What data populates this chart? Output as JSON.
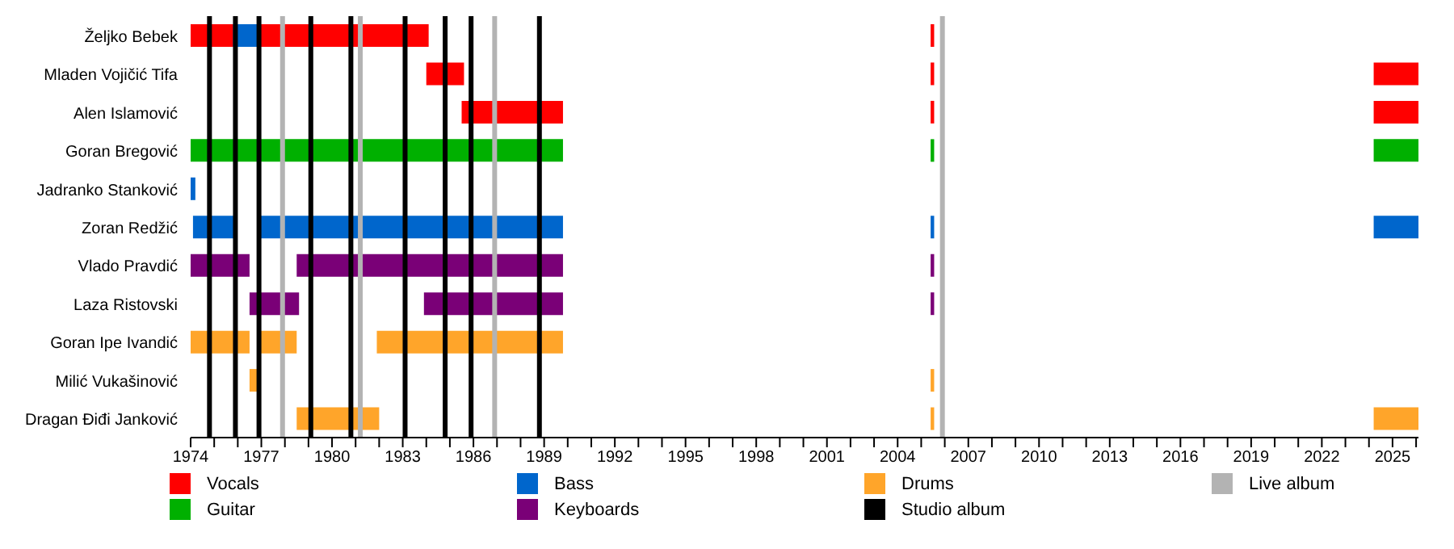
{
  "chart_data": {
    "type": "bar",
    "orientation": "horizontal",
    "legend": "bottom",
    "grid": false,
    "categories": [
      "Željko Bebek",
      "Mladen Vojičić Tifa",
      "Alen Islamović",
      "Goran Bregović",
      "Jadranko Stanković",
      "Zoran Redžić",
      "Vlado Pravdić",
      "Laza Ristovski",
      "Goran Ipe Ivandić",
      "Milić Vukašinović",
      "Dragan Điđi Janković"
    ],
    "xlim": [
      1974,
      2026.1
    ],
    "xticks": [
      1974,
      {
        "value": 1975,
        "label": null
      },
      {
        "value": 1976,
        "label": null
      },
      1977,
      {
        "value": 1978,
        "label": null
      },
      {
        "value": 1979,
        "label": null
      },
      1980,
      {
        "value": 1981,
        "label": null
      },
      {
        "value": 1982,
        "label": null
      },
      1983,
      {
        "value": 1984,
        "label": null
      },
      {
        "value": 1985,
        "label": null
      },
      1986,
      {
        "value": 1987,
        "label": null
      },
      {
        "value": 1988,
        "label": null
      },
      1989,
      {
        "value": 1990,
        "label": null
      },
      {
        "value": 1991,
        "label": null
      },
      1992,
      {
        "value": 1993,
        "label": null
      },
      {
        "value": 1994,
        "label": null
      },
      1995,
      {
        "value": 1996,
        "label": null
      },
      {
        "value": 1997,
        "label": null
      },
      1998,
      {
        "value": 1999,
        "label": null
      },
      {
        "value": 2000,
        "label": null
      },
      2001,
      {
        "value": 2002,
        "label": null
      },
      {
        "value": 2003,
        "label": null
      },
      2004,
      {
        "value": 2005,
        "label": null
      },
      {
        "value": 2006,
        "label": null
      },
      2007,
      {
        "value": 2008,
        "label": null
      },
      {
        "value": 2009,
        "label": null
      },
      2010,
      {
        "value": 2011,
        "label": null
      },
      {
        "value": 2012,
        "label": null
      },
      2013,
      {
        "value": 2014,
        "label": null
      },
      {
        "value": 2015,
        "label": null
      },
      2016,
      {
        "value": 2017,
        "label": null
      },
      {
        "value": 2018,
        "label": null
      },
      2019,
      {
        "value": 2020,
        "label": null
      },
      {
        "value": 2021,
        "label": null
      },
      2022,
      {
        "value": 2023,
        "label": null
      },
      {
        "value": 2024,
        "label": null
      },
      2025,
      {
        "value": 2026,
        "label": null
      }
    ],
    "series": [
      {
        "name": "Vocals",
        "color": "#ff0000",
        "base": [
          1974,
          1984.0,
          1985.5,
          null,
          null,
          null,
          null,
          null,
          null,
          null,
          null
        ],
        "values": [
          10.1,
          1.6,
          4.3,
          null,
          null,
          null,
          null,
          null,
          null,
          null,
          null
        ]
      },
      {
        "color": "#ff0000",
        "base": [
          2005.4,
          2005.4,
          2005.4,
          null,
          null,
          null,
          null,
          null,
          null,
          null,
          null
        ],
        "values": [
          0.15,
          0.15,
          0.15,
          null,
          null,
          null,
          null,
          null,
          null,
          null,
          null
        ]
      },
      {
        "color": "#ff0000",
        "base": [
          null,
          2024.2,
          2024.2,
          null,
          null,
          null,
          null,
          null,
          null,
          null,
          null
        ],
        "values": [
          null,
          1.9,
          1.9,
          null,
          null,
          null,
          null,
          null,
          null,
          null,
          null
        ]
      },
      {
        "name": "Guitar",
        "color": "#00b000",
        "base": [
          null,
          null,
          null,
          1974,
          null,
          null,
          null,
          null,
          null,
          null,
          null
        ],
        "values": [
          null,
          null,
          null,
          15.8,
          null,
          null,
          null,
          null,
          null,
          null,
          null
        ]
      },
      {
        "color": "#00b000",
        "base": [
          null,
          null,
          null,
          2005.4,
          null,
          null,
          null,
          null,
          null,
          null,
          null
        ],
        "values": [
          null,
          null,
          null,
          0.15,
          null,
          null,
          null,
          null,
          null,
          null,
          null
        ]
      },
      {
        "color": "#00b000",
        "base": [
          null,
          null,
          null,
          2024.2,
          null,
          null,
          null,
          null,
          null,
          null,
          null
        ],
        "values": [
          null,
          null,
          null,
          1.9,
          null,
          null,
          null,
          null,
          null,
          null,
          null
        ]
      },
      {
        "name": "Bass",
        "color": "#0066cc",
        "base": [
          1975.8,
          null,
          null,
          null,
          1974,
          1974.1,
          null,
          null,
          null,
          null,
          null
        ],
        "values": [
          1.1,
          null,
          null,
          null,
          0.2,
          1.8,
          null,
          null,
          null,
          null,
          null
        ]
      },
      {
        "color": "#0066cc",
        "base": [
          null,
          null,
          null,
          null,
          null,
          1976.9,
          null,
          null,
          null,
          null,
          null
        ],
        "values": [
          null,
          null,
          null,
          null,
          null,
          12.9,
          null,
          null,
          null,
          null,
          null
        ]
      },
      {
        "color": "#0066cc",
        "base": [
          null,
          null,
          null,
          null,
          null,
          2005.4,
          null,
          null,
          null,
          null,
          null
        ],
        "values": [
          null,
          null,
          null,
          null,
          null,
          0.15,
          null,
          null,
          null,
          null,
          null
        ]
      },
      {
        "color": "#0066cc",
        "base": [
          null,
          null,
          null,
          null,
          null,
          2024.2,
          null,
          null,
          null,
          null,
          null
        ],
        "values": [
          null,
          null,
          null,
          null,
          null,
          1.9,
          null,
          null,
          null,
          null,
          null
        ]
      },
      {
        "name": "Keyboards",
        "color": "#7a0077",
        "base": [
          null,
          null,
          null,
          null,
          null,
          null,
          1974,
          1976.5,
          null,
          null,
          null
        ],
        "values": [
          null,
          null,
          null,
          null,
          null,
          null,
          2.5,
          2.1,
          null,
          null,
          null
        ]
      },
      {
        "color": "#7a0077",
        "base": [
          null,
          null,
          null,
          null,
          null,
          null,
          1978.5,
          1983.9,
          null,
          null,
          null
        ],
        "values": [
          null,
          null,
          null,
          null,
          null,
          null,
          11.3,
          5.9,
          null,
          null,
          null
        ]
      },
      {
        "color": "#7a0077",
        "base": [
          null,
          null,
          null,
          null,
          null,
          null,
          2005.4,
          2005.4,
          null,
          null,
          null
        ],
        "values": [
          null,
          null,
          null,
          null,
          null,
          null,
          0.15,
          0.15,
          null,
          null,
          null
        ]
      },
      {
        "name": "Drums",
        "color": "#ffa52a",
        "base": [
          null,
          null,
          null,
          null,
          null,
          null,
          null,
          null,
          1974,
          1976.5,
          1978.5
        ],
        "values": [
          null,
          null,
          null,
          null,
          null,
          null,
          null,
          null,
          2.5,
          0.4,
          3.5
        ]
      },
      {
        "color": "#ffa52a",
        "base": [
          null,
          null,
          null,
          null,
          null,
          null,
          null,
          null,
          1976.9,
          2005.4,
          2005.4
        ],
        "values": [
          null,
          null,
          null,
          null,
          null,
          null,
          null,
          null,
          1.6,
          0.15,
          0.15
        ]
      },
      {
        "color": "#ffa52a",
        "base": [
          null,
          null,
          null,
          null,
          null,
          null,
          null,
          null,
          1981.9,
          null,
          2024.2
        ],
        "values": [
          null,
          null,
          null,
          null,
          null,
          null,
          null,
          null,
          7.9,
          null,
          1.9
        ]
      }
    ],
    "ref_lines": [
      {
        "axis": "x",
        "value": 1974.8,
        "label": "Studio album",
        "color": "#000000"
      },
      {
        "axis": "x",
        "value": 1975.9,
        "color": "#000000"
      },
      {
        "axis": "x",
        "value": 1976.9,
        "color": "#000000"
      },
      {
        "axis": "x",
        "value": 1979.1,
        "color": "#000000"
      },
      {
        "axis": "x",
        "value": 1980.8,
        "color": "#000000"
      },
      {
        "axis": "x",
        "value": 1983.1,
        "color": "#000000"
      },
      {
        "axis": "x",
        "value": 1984.8,
        "color": "#000000"
      },
      {
        "axis": "x",
        "value": 1985.9,
        "color": "#000000"
      },
      {
        "axis": "x",
        "value": 1988.8,
        "color": "#000000"
      },
      {
        "axis": "x",
        "value": 1977.9,
        "label": "Live album",
        "color": "#b3b3b3"
      },
      {
        "axis": "x",
        "value": 1981.2,
        "color": "#b3b3b3"
      },
      {
        "axis": "x",
        "value": 1986.9,
        "color": "#b3b3b3"
      },
      {
        "axis": "x",
        "value": 2005.9,
        "color": "#b3b3b3"
      }
    ]
  }
}
